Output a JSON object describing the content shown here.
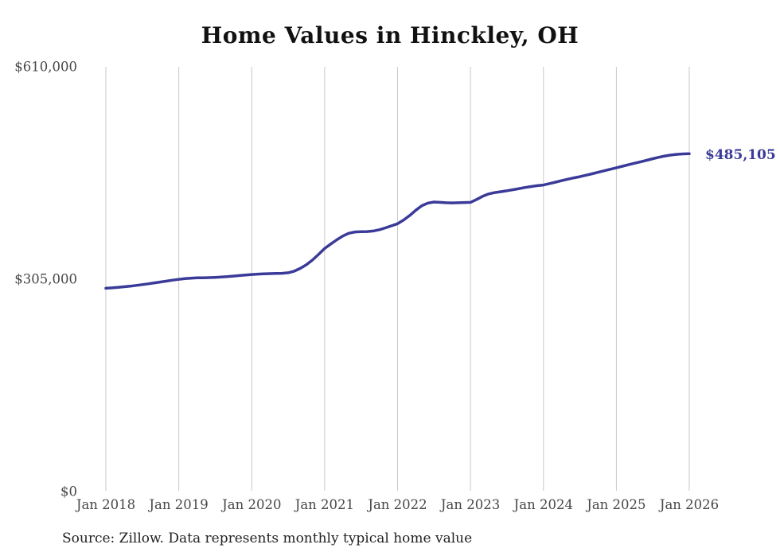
{
  "title": "Home Values in Hinckley, OH",
  "source": "Source: Zillow. Data represents monthly typical home value",
  "chart_data": {
    "type": "line",
    "x_unit": "month",
    "x_start": "Jan 2018",
    "x_end": "Jan 2026",
    "x_tick_labels": [
      "Jan 2018",
      "Jan 2019",
      "Jan 2020",
      "Jan 2021",
      "Jan 2022",
      "Jan 2023",
      "Jan 2024",
      "Jan 2025",
      "Jan 2026"
    ],
    "y_ticks": [
      {
        "label": "$0",
        "value": 0
      },
      {
        "label": "$305,000",
        "value": 305000
      },
      {
        "label": "$610,000",
        "value": 610000
      }
    ],
    "ylim": [
      0,
      610000
    ],
    "grid": "vertical-only",
    "legend": "none",
    "series_name": "Monthly typical home value",
    "end_label": "$485,105",
    "final_value": 485105,
    "values": [
      292000,
      292600,
      293300,
      294100,
      295000,
      296100,
      297200,
      298400,
      299700,
      301000,
      302300,
      303600,
      304800,
      305800,
      306500,
      306900,
      307100,
      307300,
      307600,
      308100,
      308700,
      309500,
      310300,
      311000,
      311700,
      312300,
      312700,
      313000,
      313200,
      313500,
      314200,
      316500,
      320500,
      325800,
      332500,
      340500,
      349100,
      355500,
      361500,
      367000,
      371000,
      372800,
      373200,
      373400,
      374200,
      376000,
      378700,
      381700,
      384600,
      390000,
      396500,
      404000,
      410500,
      414300,
      415800,
      415300,
      414800,
      414600,
      414800,
      415100,
      415400,
      419500,
      424000,
      427500,
      429400,
      430700,
      432000,
      433500,
      435100,
      436700,
      438100,
      439300,
      440300,
      442300,
      444400,
      446500,
      448600,
      450500,
      452300,
      454300,
      456400,
      458500,
      460700,
      462900,
      465000,
      467200,
      469400,
      471500,
      473600,
      475800,
      478100,
      480100,
      481900,
      483300,
      484300,
      484900,
      485105
    ],
    "colors": {
      "line": "#3a3a99",
      "grid": "#c9c9c9",
      "tick_text": "#474747",
      "title_text": "#111111",
      "source_text": "#222222"
    }
  }
}
